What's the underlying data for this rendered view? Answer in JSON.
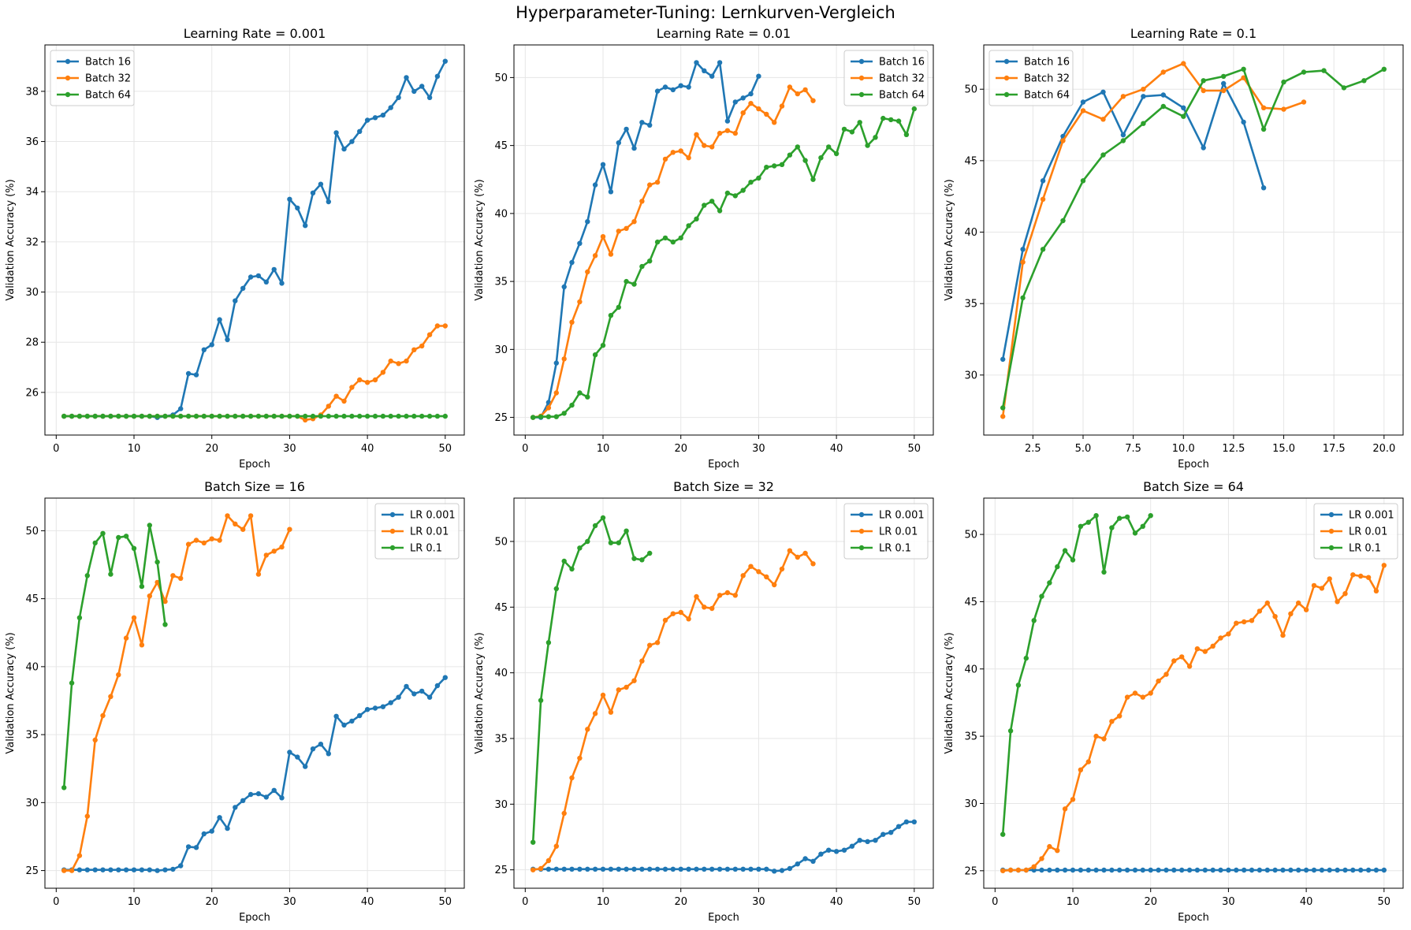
{
  "suptitle": "Hyperparameter-Tuning: Lernkurven-Vergleich",
  "colors": {
    "blue": "#1f77b4",
    "orange": "#ff7f0e",
    "green": "#2ca02c",
    "grid": "#e6e6e6"
  },
  "chart_data": [
    {
      "type": "line",
      "title": "Learning Rate = 0.001",
      "xlabel": "Epoch",
      "ylabel": "Validation Accuracy (%)",
      "xlim": [
        -1.45,
        52.45
      ],
      "ylim": [
        24.3,
        39.85
      ],
      "xticks": [
        0,
        10,
        20,
        30,
        40,
        50
      ],
      "xtick_labels": [
        "0",
        "10",
        "20",
        "30",
        "40",
        "50"
      ],
      "yticks": [
        26,
        28,
        30,
        32,
        34,
        36,
        38
      ],
      "ytick_labels": [
        "26",
        "28",
        "30",
        "32",
        "34",
        "36",
        "38"
      ],
      "grid": true,
      "legend_position": "upper-left",
      "series": [
        {
          "name": "Batch 16",
          "color": "#1f77b4",
          "x_start": 1,
          "values": [
            25.05,
            25.05,
            25.05,
            25.05,
            25.05,
            25.05,
            25.05,
            25.05,
            25.05,
            25.05,
            25.05,
            25.05,
            25.0,
            25.05,
            25.1,
            25.35,
            26.75,
            26.7,
            27.7,
            27.9,
            28.9,
            28.1,
            29.65,
            30.15,
            30.6,
            30.65,
            30.4,
            30.9,
            30.35,
            33.7,
            33.35,
            32.65,
            33.95,
            34.3,
            33.6,
            36.35,
            35.7,
            36.0,
            36.4,
            36.85,
            36.95,
            37.05,
            37.35,
            37.75,
            38.55,
            38.0,
            38.2,
            37.75,
            38.6,
            39.2
          ]
        },
        {
          "name": "Batch 32",
          "color": "#ff7f0e",
          "x_start": 1,
          "values": [
            25.05,
            25.05,
            25.05,
            25.05,
            25.05,
            25.05,
            25.05,
            25.05,
            25.05,
            25.05,
            25.05,
            25.05,
            25.05,
            25.05,
            25.05,
            25.05,
            25.05,
            25.05,
            25.05,
            25.05,
            25.05,
            25.05,
            25.05,
            25.05,
            25.05,
            25.05,
            25.05,
            25.05,
            25.05,
            25.05,
            25.05,
            24.9,
            24.95,
            25.1,
            25.45,
            25.85,
            25.65,
            26.2,
            26.5,
            26.4,
            26.5,
            26.8,
            27.25,
            27.15,
            27.25,
            27.7,
            27.85,
            28.3,
            28.65,
            28.65
          ]
        },
        {
          "name": "Batch 64",
          "color": "#2ca02c",
          "x_start": 1,
          "values": [
            25.05,
            25.05,
            25.05,
            25.05,
            25.05,
            25.05,
            25.05,
            25.05,
            25.05,
            25.05,
            25.05,
            25.05,
            25.05,
            25.05,
            25.05,
            25.05,
            25.05,
            25.05,
            25.05,
            25.05,
            25.05,
            25.05,
            25.05,
            25.05,
            25.05,
            25.05,
            25.05,
            25.05,
            25.05,
            25.05,
            25.05,
            25.05,
            25.05,
            25.05,
            25.05,
            25.05,
            25.05,
            25.05,
            25.05,
            25.05,
            25.05,
            25.05,
            25.05,
            25.05,
            25.05,
            25.05,
            25.05,
            25.05,
            25.05,
            25.05
          ]
        }
      ]
    },
    {
      "type": "line",
      "title": "Learning Rate = 0.01",
      "xlabel": "Epoch",
      "ylabel": "Validation Accuracy (%)",
      "xlim": [
        -1.45,
        52.45
      ],
      "ylim": [
        23.7,
        52.4
      ],
      "xticks": [
        0,
        10,
        20,
        30,
        40,
        50
      ],
      "xtick_labels": [
        "0",
        "10",
        "20",
        "30",
        "40",
        "50"
      ],
      "yticks": [
        25,
        30,
        35,
        40,
        45,
        50
      ],
      "ytick_labels": [
        "25",
        "30",
        "35",
        "40",
        "45",
        "50"
      ],
      "grid": true,
      "legend_position": "upper-right",
      "series": [
        {
          "name": "Batch 16",
          "color": "#1f77b4",
          "x_start": 1,
          "values": [
            25.0,
            25.0,
            26.1,
            29.0,
            34.6,
            36.4,
            37.8,
            39.4,
            42.1,
            43.6,
            41.6,
            45.2,
            46.2,
            44.8,
            46.7,
            46.5,
            49.0,
            49.3,
            49.1,
            49.4,
            49.3,
            51.1,
            50.5,
            50.1,
            51.1,
            46.8,
            48.2,
            48.5,
            48.8,
            50.1
          ]
        },
        {
          "name": "Batch 32",
          "color": "#ff7f0e",
          "x_start": 1,
          "values": [
            25.0,
            25.1,
            25.7,
            26.8,
            29.3,
            32.0,
            33.5,
            35.7,
            36.9,
            38.3,
            37.0,
            38.7,
            38.9,
            39.4,
            40.9,
            42.1,
            42.3,
            44.0,
            44.5,
            44.6,
            44.1,
            45.8,
            45.0,
            44.9,
            45.9,
            46.1,
            45.9,
            47.4,
            48.1,
            47.7,
            47.3,
            46.7,
            47.9,
            49.3,
            48.8,
            49.1,
            48.3
          ]
        },
        {
          "name": "Batch 64",
          "color": "#2ca02c",
          "x_start": 1,
          "values": [
            25.0,
            25.05,
            25.05,
            25.05,
            25.3,
            25.9,
            26.8,
            26.5,
            29.6,
            30.3,
            32.5,
            33.1,
            35.0,
            34.8,
            36.1,
            36.5,
            37.9,
            38.2,
            37.9,
            38.2,
            39.1,
            39.6,
            40.6,
            40.9,
            40.2,
            41.5,
            41.3,
            41.7,
            42.3,
            42.6,
            43.4,
            43.5,
            43.6,
            44.3,
            44.9,
            43.9,
            42.5,
            44.1,
            44.9,
            44.4,
            46.2,
            46.0,
            46.7,
            45.0,
            45.6,
            47.0,
            46.9,
            46.8,
            45.8,
            47.7
          ]
        }
      ]
    },
    {
      "type": "line",
      "title": "Learning Rate = 0.1",
      "xlabel": "Epoch",
      "ylabel": "Validation Accuracy (%)",
      "xlim": [
        0.05,
        20.95
      ],
      "ylim": [
        25.8,
        53.1
      ],
      "xticks": [
        2.5,
        5.0,
        7.5,
        10.0,
        12.5,
        15.0,
        17.5,
        20.0
      ],
      "xtick_labels": [
        "2.5",
        "5.0",
        "7.5",
        "10.0",
        "12.5",
        "15.0",
        "17.5",
        "20.0"
      ],
      "yticks": [
        30,
        35,
        40,
        45,
        50
      ],
      "ytick_labels": [
        "30",
        "35",
        "40",
        "45",
        "50"
      ],
      "grid": true,
      "legend_position": "upper-left",
      "series": [
        {
          "name": "Batch 16",
          "color": "#1f77b4",
          "x_start": 1,
          "values": [
            31.1,
            38.8,
            43.6,
            46.7,
            49.1,
            49.8,
            46.8,
            49.5,
            49.6,
            48.7,
            45.9,
            50.4,
            47.7,
            43.1
          ]
        },
        {
          "name": "Batch 32",
          "color": "#ff7f0e",
          "x_start": 1,
          "values": [
            27.1,
            37.9,
            42.3,
            46.4,
            48.5,
            47.9,
            49.5,
            50.0,
            51.2,
            51.8,
            49.9,
            49.9,
            50.8,
            48.7,
            48.6,
            49.1
          ]
        },
        {
          "name": "Batch 64",
          "color": "#2ca02c",
          "x_start": 1,
          "values": [
            27.7,
            35.4,
            38.8,
            40.8,
            43.6,
            45.4,
            46.4,
            47.6,
            48.8,
            48.1,
            50.6,
            50.9,
            51.4,
            47.2,
            50.5,
            51.2,
            51.3,
            50.1,
            50.6,
            51.4
          ]
        }
      ]
    },
    {
      "type": "line",
      "title": "Batch Size = 16",
      "xlabel": "Epoch",
      "ylabel": "Validation Accuracy (%)",
      "xlim": [
        -1.45,
        52.45
      ],
      "ylim": [
        23.7,
        52.4
      ],
      "xticks": [
        0,
        10,
        20,
        30,
        40,
        50
      ],
      "xtick_labels": [
        "0",
        "10",
        "20",
        "30",
        "40",
        "50"
      ],
      "yticks": [
        25,
        30,
        35,
        40,
        45,
        50
      ],
      "ytick_labels": [
        "25",
        "30",
        "35",
        "40",
        "45",
        "50"
      ],
      "grid": true,
      "legend_position": "upper-right",
      "series": [
        {
          "name": "LR 0.001",
          "color": "#1f77b4",
          "x_start": 1,
          "values": [
            25.05,
            25.05,
            25.05,
            25.05,
            25.05,
            25.05,
            25.05,
            25.05,
            25.05,
            25.05,
            25.05,
            25.05,
            25.0,
            25.05,
            25.1,
            25.35,
            26.75,
            26.7,
            27.7,
            27.9,
            28.9,
            28.1,
            29.65,
            30.15,
            30.6,
            30.65,
            30.4,
            30.9,
            30.35,
            33.7,
            33.35,
            32.65,
            33.95,
            34.3,
            33.6,
            36.35,
            35.7,
            36.0,
            36.4,
            36.85,
            36.95,
            37.05,
            37.35,
            37.75,
            38.55,
            38.0,
            38.2,
            37.75,
            38.6,
            39.2
          ]
        },
        {
          "name": "LR 0.01",
          "color": "#ff7f0e",
          "x_start": 1,
          "values": [
            25.0,
            25.0,
            26.1,
            29.0,
            34.6,
            36.4,
            37.8,
            39.4,
            42.1,
            43.6,
            41.6,
            45.2,
            46.2,
            44.8,
            46.7,
            46.5,
            49.0,
            49.3,
            49.1,
            49.4,
            49.3,
            51.1,
            50.5,
            50.1,
            51.1,
            46.8,
            48.2,
            48.5,
            48.8,
            50.1
          ]
        },
        {
          "name": "LR 0.1",
          "color": "#2ca02c",
          "x_start": 1,
          "values": [
            31.1,
            38.8,
            43.6,
            46.7,
            49.1,
            49.8,
            46.8,
            49.5,
            49.6,
            48.7,
            45.9,
            50.4,
            47.7,
            43.1
          ]
        }
      ]
    },
    {
      "type": "line",
      "title": "Batch Size = 32",
      "xlabel": "Epoch",
      "ylabel": "Validation Accuracy (%)",
      "xlim": [
        -1.45,
        52.45
      ],
      "ylim": [
        23.6,
        53.3
      ],
      "xticks": [
        0,
        10,
        20,
        30,
        40,
        50
      ],
      "xtick_labels": [
        "0",
        "10",
        "20",
        "30",
        "40",
        "50"
      ],
      "yticks": [
        25,
        30,
        35,
        40,
        45,
        50
      ],
      "ytick_labels": [
        "25",
        "30",
        "35",
        "40",
        "45",
        "50"
      ],
      "grid": true,
      "legend_position": "upper-right",
      "series": [
        {
          "name": "LR 0.001",
          "color": "#1f77b4",
          "x_start": 1,
          "values": [
            25.05,
            25.05,
            25.05,
            25.05,
            25.05,
            25.05,
            25.05,
            25.05,
            25.05,
            25.05,
            25.05,
            25.05,
            25.05,
            25.05,
            25.05,
            25.05,
            25.05,
            25.05,
            25.05,
            25.05,
            25.05,
            25.05,
            25.05,
            25.05,
            25.05,
            25.05,
            25.05,
            25.05,
            25.05,
            25.05,
            25.05,
            24.9,
            24.95,
            25.1,
            25.45,
            25.85,
            25.65,
            26.2,
            26.5,
            26.4,
            26.5,
            26.8,
            27.25,
            27.15,
            27.25,
            27.7,
            27.85,
            28.3,
            28.65,
            28.65
          ]
        },
        {
          "name": "LR 0.01",
          "color": "#ff7f0e",
          "x_start": 1,
          "values": [
            25.0,
            25.1,
            25.7,
            26.8,
            29.3,
            32.0,
            33.5,
            35.7,
            36.9,
            38.3,
            37.0,
            38.7,
            38.9,
            39.4,
            40.9,
            42.1,
            42.3,
            44.0,
            44.5,
            44.6,
            44.1,
            45.8,
            45.0,
            44.9,
            45.9,
            46.1,
            45.9,
            47.4,
            48.1,
            47.7,
            47.3,
            46.7,
            47.9,
            49.3,
            48.8,
            49.1,
            48.3
          ]
        },
        {
          "name": "LR 0.1",
          "color": "#2ca02c",
          "x_start": 1,
          "values": [
            27.1,
            37.9,
            42.3,
            46.4,
            48.5,
            47.9,
            49.5,
            50.0,
            51.2,
            51.8,
            49.9,
            49.9,
            50.8,
            48.7,
            48.6,
            49.1
          ]
        }
      ]
    },
    {
      "type": "line",
      "title": "Batch Size = 64",
      "xlabel": "Epoch",
      "ylabel": "Validation Accuracy (%)",
      "xlim": [
        -1.45,
        52.45
      ],
      "ylim": [
        23.7,
        52.7
      ],
      "xticks": [
        0,
        10,
        20,
        30,
        40,
        50
      ],
      "xtick_labels": [
        "0",
        "10",
        "20",
        "30",
        "40",
        "50"
      ],
      "yticks": [
        25,
        30,
        35,
        40,
        45,
        50
      ],
      "ytick_labels": [
        "25",
        "30",
        "35",
        "40",
        "45",
        "50"
      ],
      "grid": true,
      "legend_position": "upper-right",
      "series": [
        {
          "name": "LR 0.001",
          "color": "#1f77b4",
          "x_start": 1,
          "values": [
            25.05,
            25.05,
            25.05,
            25.05,
            25.05,
            25.05,
            25.05,
            25.05,
            25.05,
            25.05,
            25.05,
            25.05,
            25.05,
            25.05,
            25.05,
            25.05,
            25.05,
            25.05,
            25.05,
            25.05,
            25.05,
            25.05,
            25.05,
            25.05,
            25.05,
            25.05,
            25.05,
            25.05,
            25.05,
            25.05,
            25.05,
            25.05,
            25.05,
            25.05,
            25.05,
            25.05,
            25.05,
            25.05,
            25.05,
            25.05,
            25.05,
            25.05,
            25.05,
            25.05,
            25.05,
            25.05,
            25.05,
            25.05,
            25.05,
            25.05
          ]
        },
        {
          "name": "LR 0.01",
          "color": "#ff7f0e",
          "x_start": 1,
          "values": [
            25.0,
            25.05,
            25.05,
            25.05,
            25.3,
            25.9,
            26.8,
            26.5,
            29.6,
            30.3,
            32.5,
            33.1,
            35.0,
            34.8,
            36.1,
            36.5,
            37.9,
            38.2,
            37.9,
            38.2,
            39.1,
            39.6,
            40.6,
            40.9,
            40.2,
            41.5,
            41.3,
            41.7,
            42.3,
            42.6,
            43.4,
            43.5,
            43.6,
            44.3,
            44.9,
            43.9,
            42.5,
            44.1,
            44.9,
            44.4,
            46.2,
            46.0,
            46.7,
            45.0,
            45.6,
            47.0,
            46.9,
            46.8,
            45.8,
            47.7
          ]
        },
        {
          "name": "LR 0.1",
          "color": "#2ca02c",
          "x_start": 1,
          "values": [
            27.7,
            35.4,
            38.8,
            40.8,
            43.6,
            45.4,
            46.4,
            47.6,
            48.8,
            48.1,
            50.6,
            50.9,
            51.4,
            47.2,
            50.5,
            51.2,
            51.3,
            50.1,
            50.6,
            51.4
          ]
        }
      ]
    }
  ]
}
